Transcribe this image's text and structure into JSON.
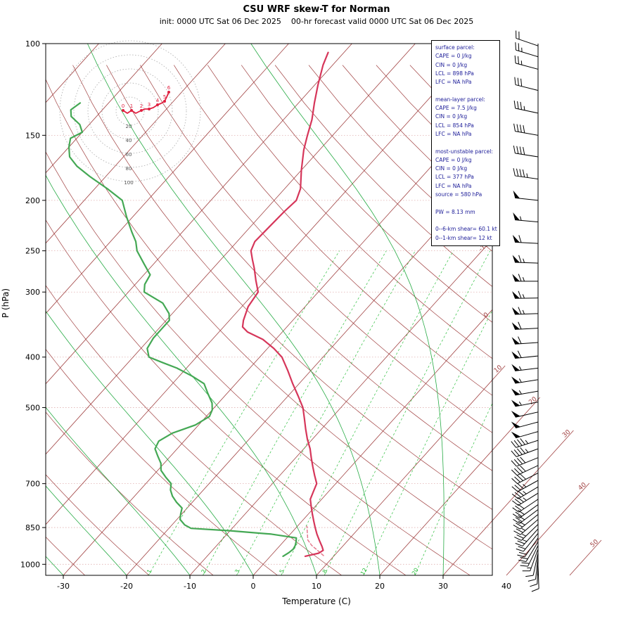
{
  "header": {
    "title": "CSU WRF skew-T for Norman",
    "subtitle": "init: 0000 UTC Sat 06 Dec 2025    00-hr forecast valid 0000 UTC Sat 06 Dec 2025"
  },
  "axes": {
    "x_label": "Temperature (C)",
    "y_label": "P (hPa)",
    "x_ticks": [
      -30,
      -20,
      -10,
      0,
      10,
      20,
      30,
      40
    ],
    "y_ticks": [
      100,
      150,
      200,
      250,
      300,
      400,
      500,
      700,
      850,
      1000
    ]
  },
  "info_box": {
    "lines": [
      "surface parcel:",
      "CAPE = 0 J/kg",
      "CIN = 0 J/kg",
      "LCL = 898 hPa",
      "LFC = NA hPa",
      "",
      "mean-layer parcel:",
      "CAPE = 7.5 J/kg",
      "CIN = 0 J/kg",
      "LCL = 854 hPa",
      "LFC = NA hPa",
      "",
      "most-unstable parcel:",
      "CAPE = 0 J/kg",
      "CIN = 0 J/kg",
      "LCL = 377 hPa",
      "LFC = NA hPa",
      "source = 580 hPa",
      "",
      "PW =  8.13 mm",
      "",
      "0--6-km shear= 60.1 kt",
      "0--1-km shear= 12 kt"
    ]
  },
  "hodograph": {
    "units": "kt",
    "rings": [
      20,
      40,
      60,
      80,
      100
    ],
    "km_labels": [
      "0",
      "1",
      "2",
      "3",
      "4",
      "5",
      "6"
    ],
    "trace": [
      [
        -10,
        1
      ],
      [
        -4,
        -3
      ],
      [
        2,
        1
      ],
      [
        8,
        -3
      ],
      [
        16,
        1
      ],
      [
        21,
        3
      ],
      [
        27,
        3
      ],
      [
        33,
        5
      ],
      [
        39,
        9
      ],
      [
        44,
        11
      ],
      [
        49,
        14
      ],
      [
        52,
        20
      ],
      [
        55,
        27
      ]
    ],
    "km_points": [
      [
        -10,
        1
      ],
      [
        2,
        1
      ],
      [
        16,
        1
      ],
      [
        27,
        3
      ],
      [
        39,
        9
      ],
      [
        49,
        14
      ],
      [
        55,
        27
      ]
    ]
  },
  "chart_data": {
    "type": "line",
    "diagram": "skew-T log-P",
    "title": "CSU WRF skew-T for Norman",
    "xlabel": "Temperature (C)",
    "ylabel": "P (hPa)",
    "x_range_c": [
      -35,
      45
    ],
    "pressure_log_range": [
      100,
      1050
    ],
    "grid": {
      "isotherms": {
        "start": -120,
        "end": 50,
        "step": 10
      },
      "dry_adiabats": {
        "start": -30,
        "end": 160,
        "step": 10
      },
      "moist_adiabat_starts": [
        -40,
        -30,
        -20,
        -10,
        0,
        10,
        20,
        30,
        40
      ],
      "mixing_ratio_values": [
        1,
        2,
        3,
        5,
        8,
        12,
        20
      ],
      "isotherm_labels": [
        -10,
        0,
        10,
        20,
        30,
        40,
        50
      ]
    },
    "series": [
      {
        "name": "surface_parcel",
        "style": "dashed",
        "color": "#e4798d",
        "width": 1.5,
        "points": [
          [
            962,
            8.3
          ],
          [
            940,
            6.6
          ],
          [
            920,
            5.0
          ],
          [
            898,
            3.6
          ],
          [
            880,
            2.9
          ],
          [
            860,
            2.1
          ],
          [
            845,
            1.5
          ]
        ]
      },
      {
        "name": "dewpoint",
        "style": "solid",
        "color": "#44a854",
        "width": 2.2,
        "points": [
          [
            965,
            2.0
          ],
          [
            950,
            2.4
          ],
          [
            935,
            2.6
          ],
          [
            920,
            2.4
          ],
          [
            905,
            2.0
          ],
          [
            890,
            1.5
          ],
          [
            875,
            -3.0
          ],
          [
            862,
            -10.0
          ],
          [
            853,
            -16.5
          ],
          [
            840,
            -18.0
          ],
          [
            820,
            -19.5
          ],
          [
            800,
            -20.2
          ],
          [
            780,
            -20.8
          ],
          [
            760,
            -22.5
          ],
          [
            740,
            -24.0
          ],
          [
            720,
            -25.2
          ],
          [
            700,
            -26.0
          ],
          [
            680,
            -27.8
          ],
          [
            660,
            -29.5
          ],
          [
            640,
            -30.5
          ],
          [
            620,
            -32.0
          ],
          [
            600,
            -33.5
          ],
          [
            580,
            -34.0
          ],
          [
            560,
            -33.0
          ],
          [
            540,
            -30.5
          ],
          [
            520,
            -29.5
          ],
          [
            505,
            -30.0
          ],
          [
            490,
            -31.0
          ],
          [
            470,
            -33.0
          ],
          [
            450,
            -35.0
          ],
          [
            435,
            -38.0
          ],
          [
            420,
            -41.5
          ],
          [
            410,
            -44.5
          ],
          [
            400,
            -47.5
          ],
          [
            385,
            -49.0
          ],
          [
            368,
            -49.5
          ],
          [
            355,
            -49.5
          ],
          [
            340,
            -49.5
          ],
          [
            330,
            -50.5
          ],
          [
            315,
            -53.0
          ],
          [
            300,
            -57.5
          ],
          [
            290,
            -58.5
          ],
          [
            278,
            -59.0
          ],
          [
            265,
            -61.5
          ],
          [
            250,
            -64.5
          ],
          [
            240,
            -66.0
          ],
          [
            230,
            -68.0
          ],
          [
            215,
            -71.0
          ],
          [
            200,
            -74.0
          ],
          [
            190,
            -78.0
          ],
          [
            180,
            -82.5
          ],
          [
            172,
            -86.0
          ],
          [
            165,
            -88.5
          ],
          [
            158,
            -90.0
          ],
          [
            152,
            -91.0
          ],
          [
            148,
            -90.0
          ],
          [
            143,
            -91.5
          ],
          [
            138,
            -94.0
          ],
          [
            134,
            -95.0
          ],
          [
            130,
            -94.5
          ]
        ]
      },
      {
        "name": "temperature",
        "style": "solid",
        "color": "#d6365a",
        "width": 2.2,
        "points": [
          [
            965,
            5.5
          ],
          [
            952,
            7.2
          ],
          [
            940,
            7.5
          ],
          [
            925,
            6.8
          ],
          [
            900,
            5.5
          ],
          [
            875,
            4.2
          ],
          [
            850,
            3.0
          ],
          [
            825,
            1.8
          ],
          [
            800,
            0.6
          ],
          [
            775,
            -0.6
          ],
          [
            750,
            -1.8
          ],
          [
            725,
            -2.4
          ],
          [
            700,
            -3.0
          ],
          [
            675,
            -4.5
          ],
          [
            650,
            -6.0
          ],
          [
            625,
            -7.5
          ],
          [
            600,
            -9.0
          ],
          [
            575,
            -10.8
          ],
          [
            550,
            -12.5
          ],
          [
            525,
            -14.2
          ],
          [
            500,
            -16.0
          ],
          [
            475,
            -18.4
          ],
          [
            450,
            -21.0
          ],
          [
            425,
            -23.6
          ],
          [
            400,
            -26.5
          ],
          [
            385,
            -29.0
          ],
          [
            370,
            -32.0
          ],
          [
            358,
            -35.5
          ],
          [
            350,
            -37.0
          ],
          [
            340,
            -37.8
          ],
          [
            320,
            -39.0
          ],
          [
            300,
            -39.5
          ],
          [
            285,
            -41.5
          ],
          [
            270,
            -43.5
          ],
          [
            260,
            -45.0
          ],
          [
            250,
            -46.5
          ],
          [
            240,
            -47.2
          ],
          [
            225,
            -47.0
          ],
          [
            210,
            -46.8
          ],
          [
            200,
            -46.5
          ],
          [
            190,
            -47.5
          ],
          [
            175,
            -50.0
          ],
          [
            160,
            -52.5
          ],
          [
            150,
            -54.0
          ],
          [
            140,
            -55.5
          ],
          [
            130,
            -57.5
          ],
          [
            120,
            -59.5
          ],
          [
            110,
            -61.5
          ],
          [
            104,
            -62.5
          ]
        ]
      }
    ],
    "winds": [
      [
        1005,
        178,
        8
      ],
      [
        985,
        182,
        9
      ],
      [
        965,
        186,
        10
      ],
      [
        950,
        192,
        12
      ],
      [
        935,
        200,
        15
      ],
      [
        920,
        206,
        18
      ],
      [
        905,
        211,
        20
      ],
      [
        890,
        215,
        20
      ],
      [
        872,
        219,
        22
      ],
      [
        855,
        222,
        24
      ],
      [
        838,
        226,
        25
      ],
      [
        820,
        229,
        26
      ],
      [
        802,
        231,
        28
      ],
      [
        785,
        233,
        30
      ],
      [
        768,
        234,
        30
      ],
      [
        750,
        236,
        32
      ],
      [
        730,
        238,
        33
      ],
      [
        710,
        239,
        35
      ],
      [
        690,
        241,
        35
      ],
      [
        668,
        243,
        38
      ],
      [
        646,
        245,
        40
      ],
      [
        624,
        248,
        42
      ],
      [
        600,
        250,
        44
      ],
      [
        578,
        252,
        46
      ],
      [
        556,
        254,
        48
      ],
      [
        533,
        255,
        50
      ],
      [
        510,
        257,
        52
      ],
      [
        488,
        259,
        54
      ],
      [
        465,
        260,
        55
      ],
      [
        442,
        261,
        55
      ],
      [
        420,
        263,
        57
      ],
      [
        398,
        264,
        58
      ],
      [
        375,
        266,
        60
      ],
      [
        352,
        267,
        62
      ],
      [
        330,
        268,
        63
      ],
      [
        308,
        269,
        65
      ],
      [
        286,
        270,
        65
      ],
      [
        264,
        272,
        63
      ],
      [
        242,
        273,
        60
      ],
      [
        220,
        275,
        55
      ],
      [
        200,
        276,
        52
      ],
      [
        182,
        278,
        47
      ],
      [
        165,
        279,
        42
      ],
      [
        150,
        280,
        38
      ],
      [
        136,
        282,
        33
      ],
      [
        123,
        284,
        28
      ],
      [
        112,
        285,
        25
      ],
      [
        106,
        287,
        23
      ],
      [
        101,
        289,
        21
      ]
    ],
    "colors": {
      "isotherm": "#a04040",
      "dry_adiabat": "#a04040",
      "moist_adiabat": "#27ab45",
      "mixing_ratio": "#2fbf3f",
      "pressure_line": "#e0b0b0",
      "temperature": "#d6365a",
      "dewpoint": "#44a854",
      "parcel": "#e4798d",
      "wind_barb": "#000000",
      "frame": "#000000",
      "info_text": "#20209a",
      "hodo_trace": "#e02040",
      "hodo_ring": "#aaaaaa"
    }
  }
}
